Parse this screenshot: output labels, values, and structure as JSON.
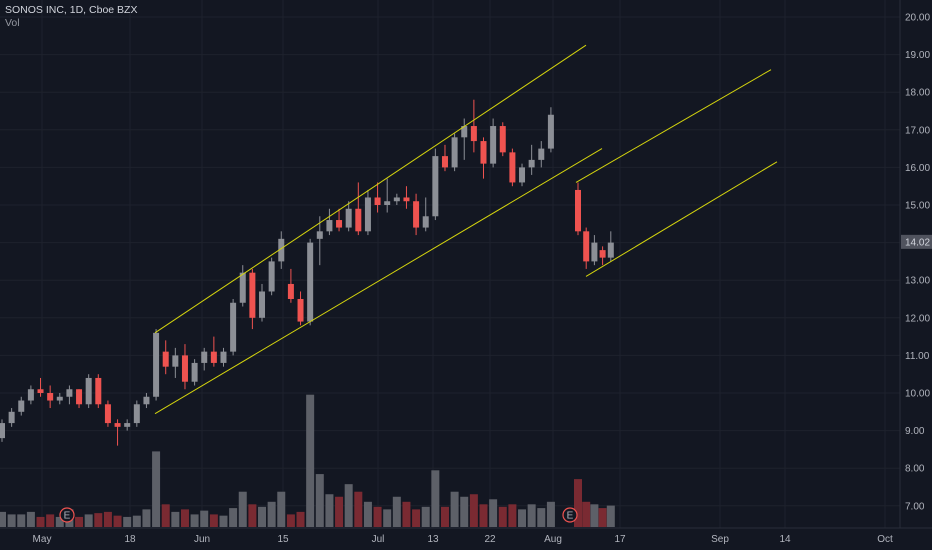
{
  "header": {
    "title": "SONOS INC, 1D, Cboe BZX",
    "volume_label": "Vol"
  },
  "colors": {
    "background": "#131722",
    "up": "#8c8f96",
    "down": "#ef5350",
    "vol_up": "#5d6068",
    "vol_down": "#7a2a32",
    "channel": "#d4d40e",
    "grid": "#1e222d",
    "axis_text": "#b2b5be"
  },
  "current_price": "14.02",
  "chart_data": {
    "type": "candlestick",
    "title": "SONOS INC, 1D, Cboe BZX",
    "y_axis": {
      "side": "right",
      "ticks": [
        "7.00",
        "8.00",
        "9.00",
        "10.00",
        "11.00",
        "12.00",
        "13.00",
        "14.00",
        "15.00",
        "16.00",
        "17.00",
        "18.00",
        "19.00",
        "20.00"
      ],
      "range": [
        6.2,
        20.3
      ]
    },
    "x_axis": {
      "labels": [
        "May",
        "18",
        "Jun",
        "15",
        "Jul",
        "13",
        "22",
        "Aug",
        "17",
        "Sep",
        "14",
        "Oct"
      ]
    },
    "candles": [
      [
        8.8,
        9.3,
        8.7,
        9.2
      ],
      [
        9.2,
        9.6,
        9.1,
        9.5
      ],
      [
        9.5,
        9.9,
        9.4,
        9.8
      ],
      [
        9.8,
        10.2,
        9.7,
        10.1
      ],
      [
        10.1,
        10.4,
        9.9,
        10.0
      ],
      [
        10.0,
        10.2,
        9.6,
        9.8
      ],
      [
        9.8,
        10.0,
        9.7,
        9.9
      ],
      [
        9.9,
        10.2,
        9.7,
        10.1
      ],
      [
        10.1,
        10.1,
        9.6,
        9.7
      ],
      [
        9.7,
        10.5,
        9.6,
        10.4
      ],
      [
        10.4,
        10.5,
        9.6,
        9.7
      ],
      [
        9.7,
        9.8,
        9.1,
        9.2
      ],
      [
        9.2,
        9.3,
        8.6,
        9.1
      ],
      [
        9.1,
        9.3,
        9.0,
        9.2
      ],
      [
        9.2,
        9.8,
        9.1,
        9.7
      ],
      [
        9.7,
        10.0,
        9.6,
        9.9
      ],
      [
        9.9,
        11.7,
        9.8,
        11.6
      ],
      [
        11.1,
        11.4,
        10.5,
        10.7
      ],
      [
        10.7,
        11.2,
        10.4,
        11.0
      ],
      [
        11.0,
        11.3,
        10.1,
        10.3
      ],
      [
        10.3,
        10.9,
        10.2,
        10.8
      ],
      [
        10.8,
        11.2,
        10.6,
        11.1
      ],
      [
        11.1,
        11.5,
        10.7,
        10.8
      ],
      [
        10.8,
        11.2,
        10.7,
        11.1
      ],
      [
        11.1,
        12.5,
        11.0,
        12.4
      ],
      [
        12.4,
        13.4,
        12.3,
        13.2
      ],
      [
        13.2,
        13.3,
        11.7,
        12.0
      ],
      [
        12.0,
        12.9,
        11.9,
        12.7
      ],
      [
        12.7,
        13.6,
        12.6,
        13.5
      ],
      [
        13.5,
        14.3,
        13.3,
        14.1
      ],
      [
        12.9,
        13.3,
        12.4,
        12.5
      ],
      [
        12.5,
        12.7,
        11.8,
        11.9
      ],
      [
        11.9,
        14.1,
        11.8,
        14.0
      ],
      [
        14.1,
        14.7,
        13.4,
        14.3
      ],
      [
        14.3,
        14.9,
        14.2,
        14.6
      ],
      [
        14.6,
        14.9,
        14.3,
        14.4
      ],
      [
        14.4,
        15.1,
        14.3,
        14.9
      ],
      [
        14.9,
        15.6,
        14.2,
        14.3
      ],
      [
        14.3,
        15.4,
        14.2,
        15.2
      ],
      [
        15.2,
        15.6,
        14.8,
        15.0
      ],
      [
        15.0,
        15.7,
        14.8,
        15.1
      ],
      [
        15.1,
        15.3,
        15.0,
        15.2
      ],
      [
        15.2,
        15.5,
        14.9,
        15.1
      ],
      [
        15.1,
        15.3,
        14.2,
        14.4
      ],
      [
        14.4,
        15.2,
        14.3,
        14.7
      ],
      [
        14.7,
        16.5,
        14.6,
        16.3
      ],
      [
        16.3,
        16.6,
        15.9,
        16.0
      ],
      [
        16.0,
        16.9,
        15.9,
        16.8
      ],
      [
        16.8,
        17.3,
        16.2,
        17.1
      ],
      [
        17.1,
        17.8,
        16.4,
        16.7
      ],
      [
        16.7,
        16.8,
        15.7,
        16.1
      ],
      [
        16.1,
        17.3,
        16.0,
        17.1
      ],
      [
        17.1,
        17.2,
        16.3,
        16.4
      ],
      [
        16.4,
        16.5,
        15.5,
        15.6
      ],
      [
        15.6,
        16.1,
        15.5,
        16.0
      ],
      [
        16.0,
        16.6,
        15.8,
        16.2
      ],
      [
        16.2,
        16.7,
        16.0,
        16.5
      ],
      [
        16.5,
        17.6,
        16.4,
        17.4
      ],
      [
        15.4,
        15.6,
        14.2,
        14.3
      ],
      [
        14.3,
        14.4,
        13.3,
        13.5
      ],
      [
        13.5,
        14.2,
        13.4,
        14.0
      ],
      [
        13.8,
        13.9,
        13.4,
        13.6
      ],
      [
        13.6,
        14.3,
        13.5,
        14.0
      ]
    ],
    "volume": [
      12,
      10,
      10,
      12,
      8,
      10,
      8,
      14,
      8,
      10,
      11,
      12,
      9,
      8,
      9,
      14,
      60,
      18,
      12,
      14,
      10,
      13,
      10,
      9,
      15,
      28,
      18,
      16,
      20,
      28,
      10,
      12,
      105,
      42,
      26,
      24,
      34,
      28,
      20,
      16,
      14,
      24,
      20,
      14,
      16,
      45,
      16,
      28,
      24,
      26,
      18,
      22,
      16,
      18,
      14,
      18,
      15,
      20,
      38,
      20,
      18,
      15,
      17
    ],
    "events": [
      {
        "label": "E"
      },
      {
        "label": "E"
      }
    ]
  }
}
